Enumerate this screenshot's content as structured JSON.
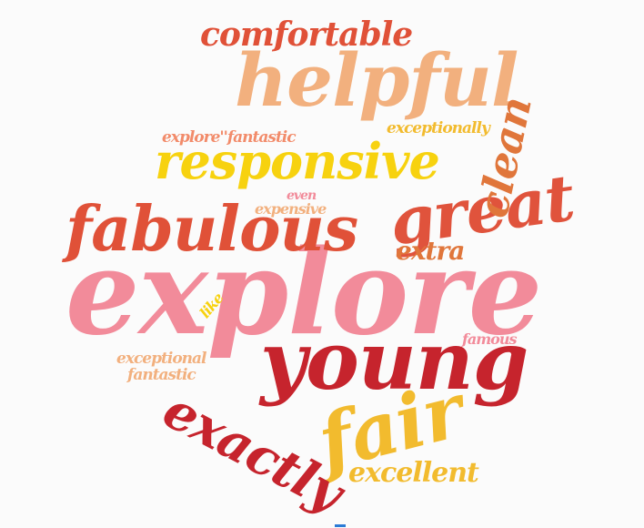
{
  "words": [
    {
      "text": "explore",
      "color": "#f28b9a"
    },
    {
      "text": "young",
      "color": "#c6242d"
    },
    {
      "text": "fabulous",
      "color": "#e05138"
    },
    {
      "text": "helpful",
      "color": "#f2b07e"
    },
    {
      "text": "responsive",
      "color": "#f7d20f"
    },
    {
      "text": "great",
      "color": "#e0533c"
    },
    {
      "text": "clean",
      "color": "#e0763b"
    },
    {
      "text": "fair",
      "color": "#f2bb2e"
    },
    {
      "text": "exactly",
      "color": "#c6242d"
    },
    {
      "text": "comfortable",
      "color": "#e05138"
    },
    {
      "text": "excellent",
      "color": "#f2bb2e"
    },
    {
      "text": "extra",
      "color": "#e0763b"
    },
    {
      "text": "explore''fantastic",
      "color": "#f28b6a"
    },
    {
      "text": "exceptionally",
      "color": "#f2bb2e"
    },
    {
      "text": "even",
      "color": "#f28b9a"
    },
    {
      "text": "expensive",
      "color": "#f2b07e"
    },
    {
      "text": "like",
      "color": "#f7d20f"
    },
    {
      "text": "famous",
      "color": "#f28b9a"
    },
    {
      "text": "exceptional",
      "color": "#f2b07e"
    },
    {
      "text": "fantastic",
      "color": "#f2b07e"
    }
  ],
  "background": "#fbfbfb"
}
